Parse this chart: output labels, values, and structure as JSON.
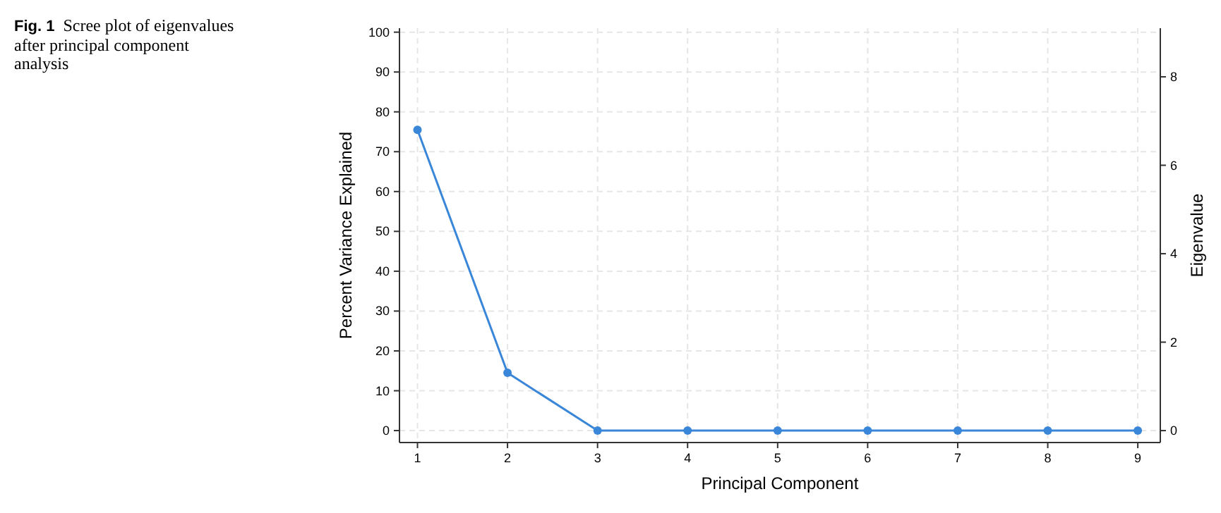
{
  "chart_data": {
    "type": "line",
    "title": "Fig. 1",
    "subtitle": "Scree plot of eigenvalues after principal component analysis",
    "xlabel": "Principal Component",
    "ylabel": "Percent Variance Explained",
    "y2label": "Eigenvalue",
    "x": [
      1,
      2,
      3,
      4,
      5,
      6,
      7,
      8,
      9
    ],
    "series": [
      {
        "color": "#3a86d8",
        "values": [
          75.5,
          14.5,
          0,
          0,
          0,
          0,
          0,
          0,
          0
        ]
      }
    ],
    "xlim": [
      0.8,
      9.25
    ],
    "xticks": [
      1,
      2,
      3,
      4,
      5,
      6,
      7,
      8,
      9
    ],
    "ylim": [
      -3,
      101
    ],
    "yticks": [
      0,
      10,
      20,
      30,
      40,
      50,
      60,
      70,
      80,
      90,
      100
    ],
    "y2lim": [
      -0.27,
      9.1
    ],
    "y2ticks": [
      0,
      2,
      4,
      6,
      8
    ],
    "grid": true,
    "marker": "circle",
    "line_style": "solid"
  }
}
